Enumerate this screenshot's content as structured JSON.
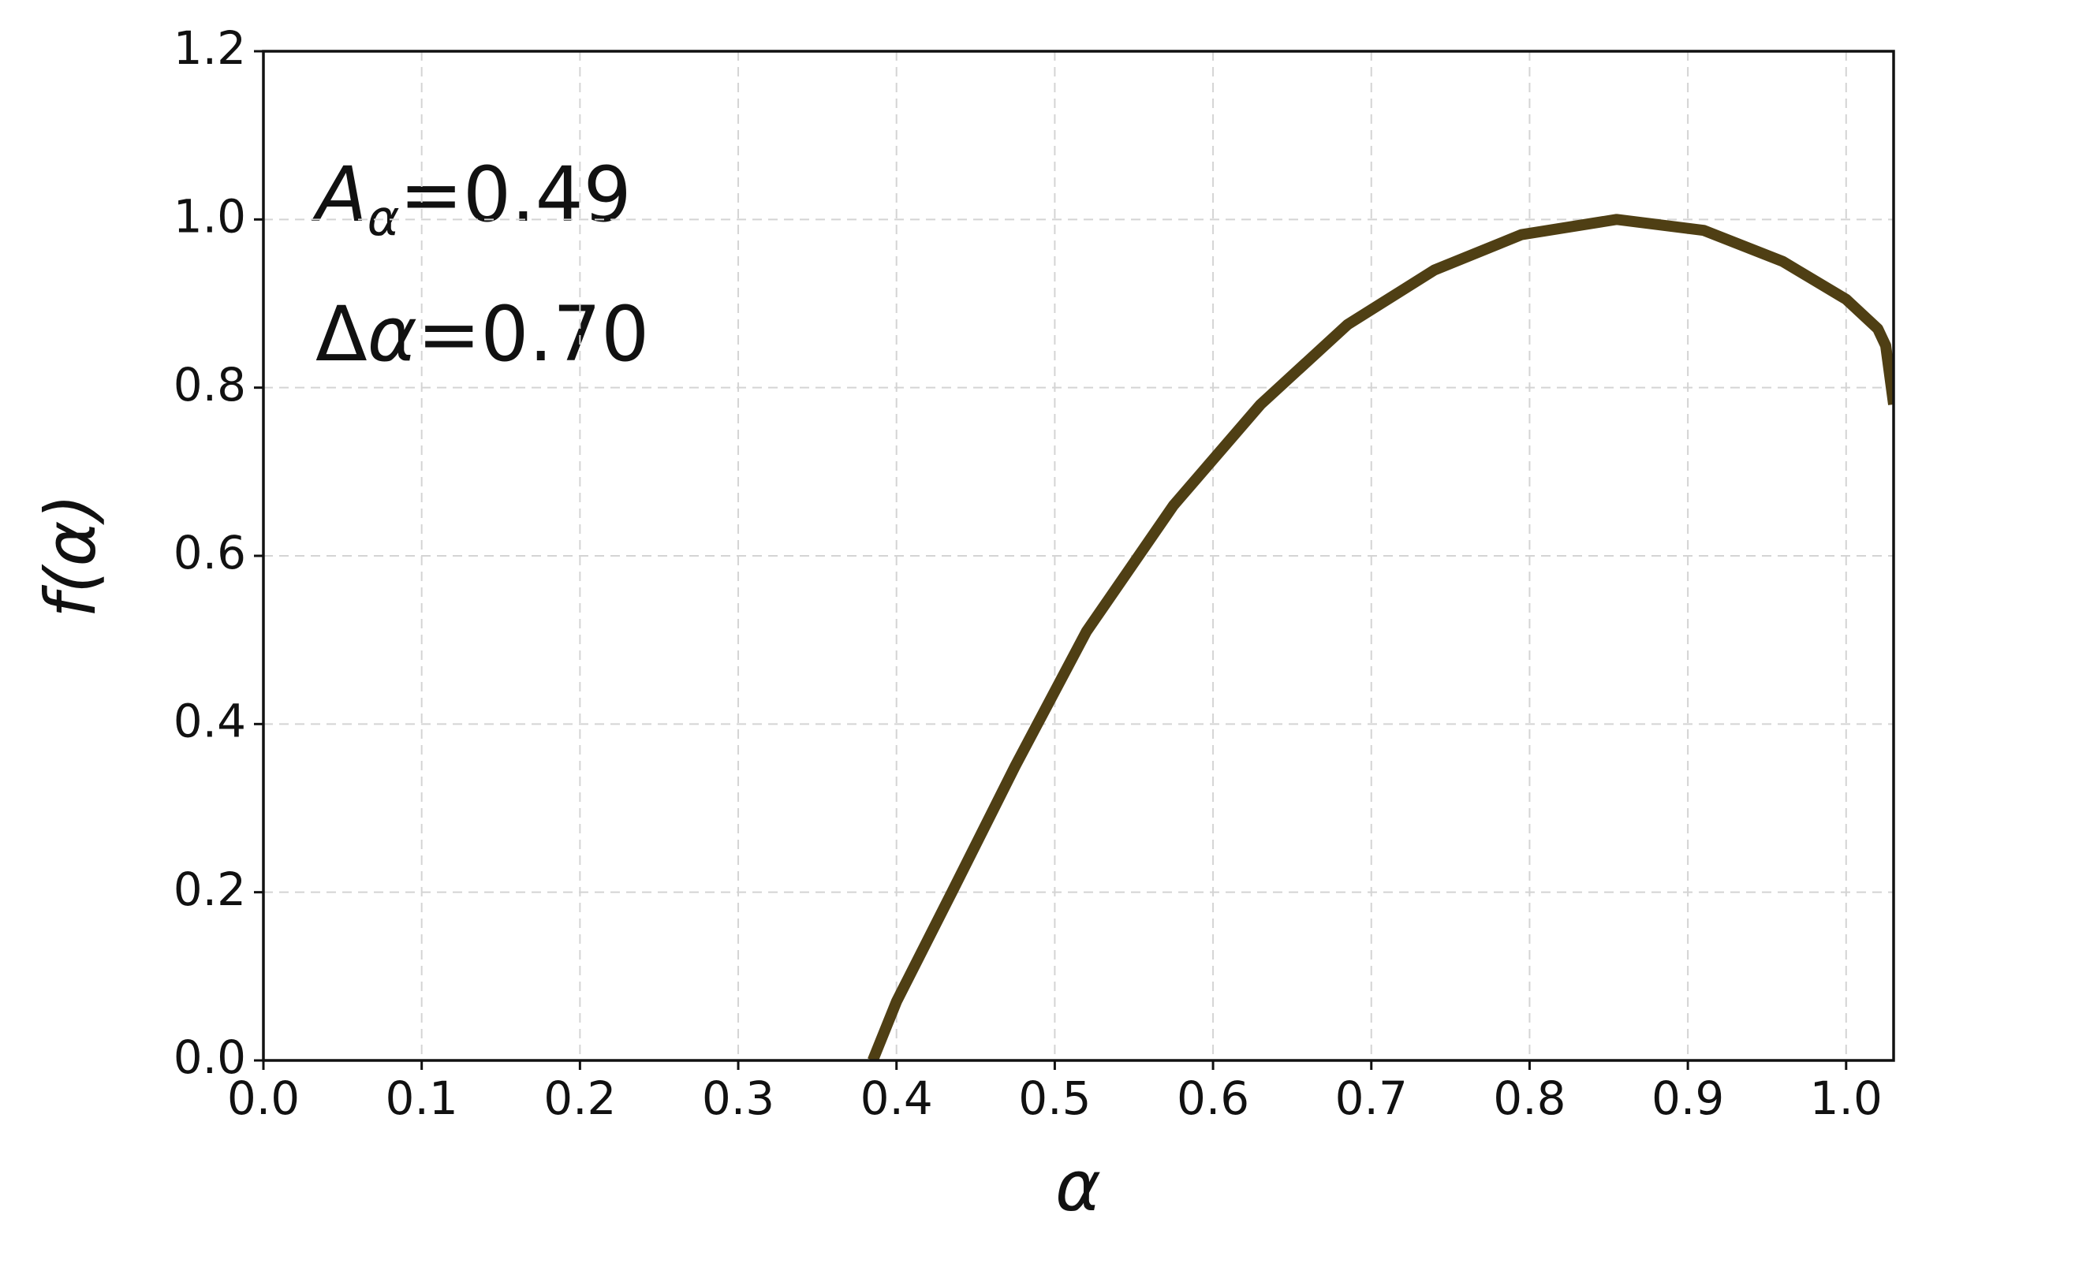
{
  "chart_data": {
    "type": "line",
    "xlabel": "α",
    "ylabel": "f(α)",
    "annotations": [
      {
        "symbol": "A",
        "subscript": "α",
        "text": "=0.49"
      },
      {
        "symbol": "Δ",
        "italic": "α",
        "text": "=0.70"
      }
    ],
    "series": [
      {
        "color": "#4f3f14",
        "x": [
          0.385,
          0.4,
          0.435,
          0.475,
          0.52,
          0.575,
          0.63,
          0.685,
          0.74,
          0.795,
          0.855,
          0.91,
          0.96,
          1.0,
          1.02,
          1.025,
          1.03
        ],
        "values": [
          0,
          0.07,
          0.2,
          0.35,
          0.51,
          0.66,
          0.78,
          0.875,
          0.94,
          0.982,
          1.0,
          0.987,
          0.95,
          0.905,
          0.87,
          0.85,
          0.78
        ]
      }
    ],
    "xlim": [
      0,
      1.03
    ],
    "ylim": [
      0,
      1.2
    ],
    "xticks": [
      {
        "value": 0,
        "label": "0.0"
      },
      0.1,
      0.2,
      0.3,
      0.4,
      0.5,
      0.6,
      0.7,
      0.8,
      0.9,
      {
        "value": 1,
        "label": "1.0"
      }
    ],
    "yticks": [
      {
        "value": 0,
        "label": "0.0"
      },
      0.2,
      0.4,
      0.6,
      0.8,
      {
        "value": 1,
        "label": "1.0"
      },
      1.2
    ],
    "grid": true
  }
}
